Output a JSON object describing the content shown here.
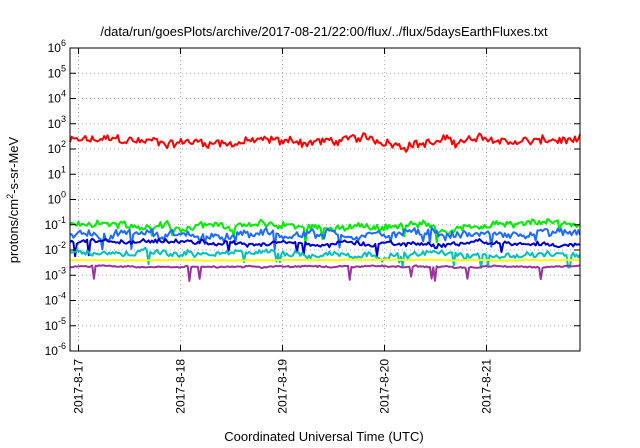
{
  "chart_data": {
    "type": "line",
    "title": "/data/run/goesPlots/archive/2017-08-21/22:00/flux/../flux/5daysEarthFluxes.txt",
    "xlabel": "Coordinated Universal Time (UTC)",
    "ylabel": "protons/cm²-s-sr-MeV",
    "y_scale": "log",
    "ylim": [
      1e-06,
      1000000.0
    ],
    "y_tick_labels": [
      {
        "base": "10",
        "exp": "-6"
      },
      {
        "base": "10",
        "exp": "-5"
      },
      {
        "base": "10",
        "exp": "-4"
      },
      {
        "base": "10",
        "exp": "-3"
      },
      {
        "base": "10",
        "exp": "-2"
      },
      {
        "base": "10",
        "exp": "-1"
      },
      {
        "base": "10",
        "exp": "0"
      },
      {
        "base": "10",
        "exp": "1"
      },
      {
        "base": "10",
        "exp": "2"
      },
      {
        "base": "10",
        "exp": "3"
      },
      {
        "base": "10",
        "exp": "4"
      },
      {
        "base": "10",
        "exp": "5"
      },
      {
        "base": "10",
        "exp": "6"
      }
    ],
    "xlim": [
      "2017-08-16T22:00",
      "2017-08-21T22:00"
    ],
    "x_ticks": [
      "2017-08-17",
      "2017-08-18",
      "2017-08-19",
      "2017-08-20",
      "2017-08-21"
    ],
    "x_tick_labels": [
      "2017-8-17",
      "2017-8-18",
      "2017-8-19",
      "2017-8-20",
      "2017-8-21"
    ],
    "grid": true,
    "series": [
      {
        "color": "#ff0000",
        "typical": 200,
        "spread": 0.28,
        "dips": 0.0
      },
      {
        "color": "#00ee00",
        "typical": 0.09,
        "spread": 0.22,
        "dips": 0.02
      },
      {
        "color": "#1e6bff",
        "typical": 0.04,
        "spread": 0.25,
        "dips": 0.03
      },
      {
        "color": "#0000cc",
        "typical": 0.018,
        "spread": 0.14,
        "dips": 0.03
      },
      {
        "color": "#00c0c0",
        "typical": 0.007,
        "spread": 0.18,
        "dips": 0.04
      },
      {
        "color": "#ffff00",
        "typical": 0.004,
        "spread": 0.03,
        "dips": 0.0
      },
      {
        "color": "#993399",
        "typical": 0.0022,
        "spread": 0.05,
        "dips": 0.025
      }
    ]
  }
}
